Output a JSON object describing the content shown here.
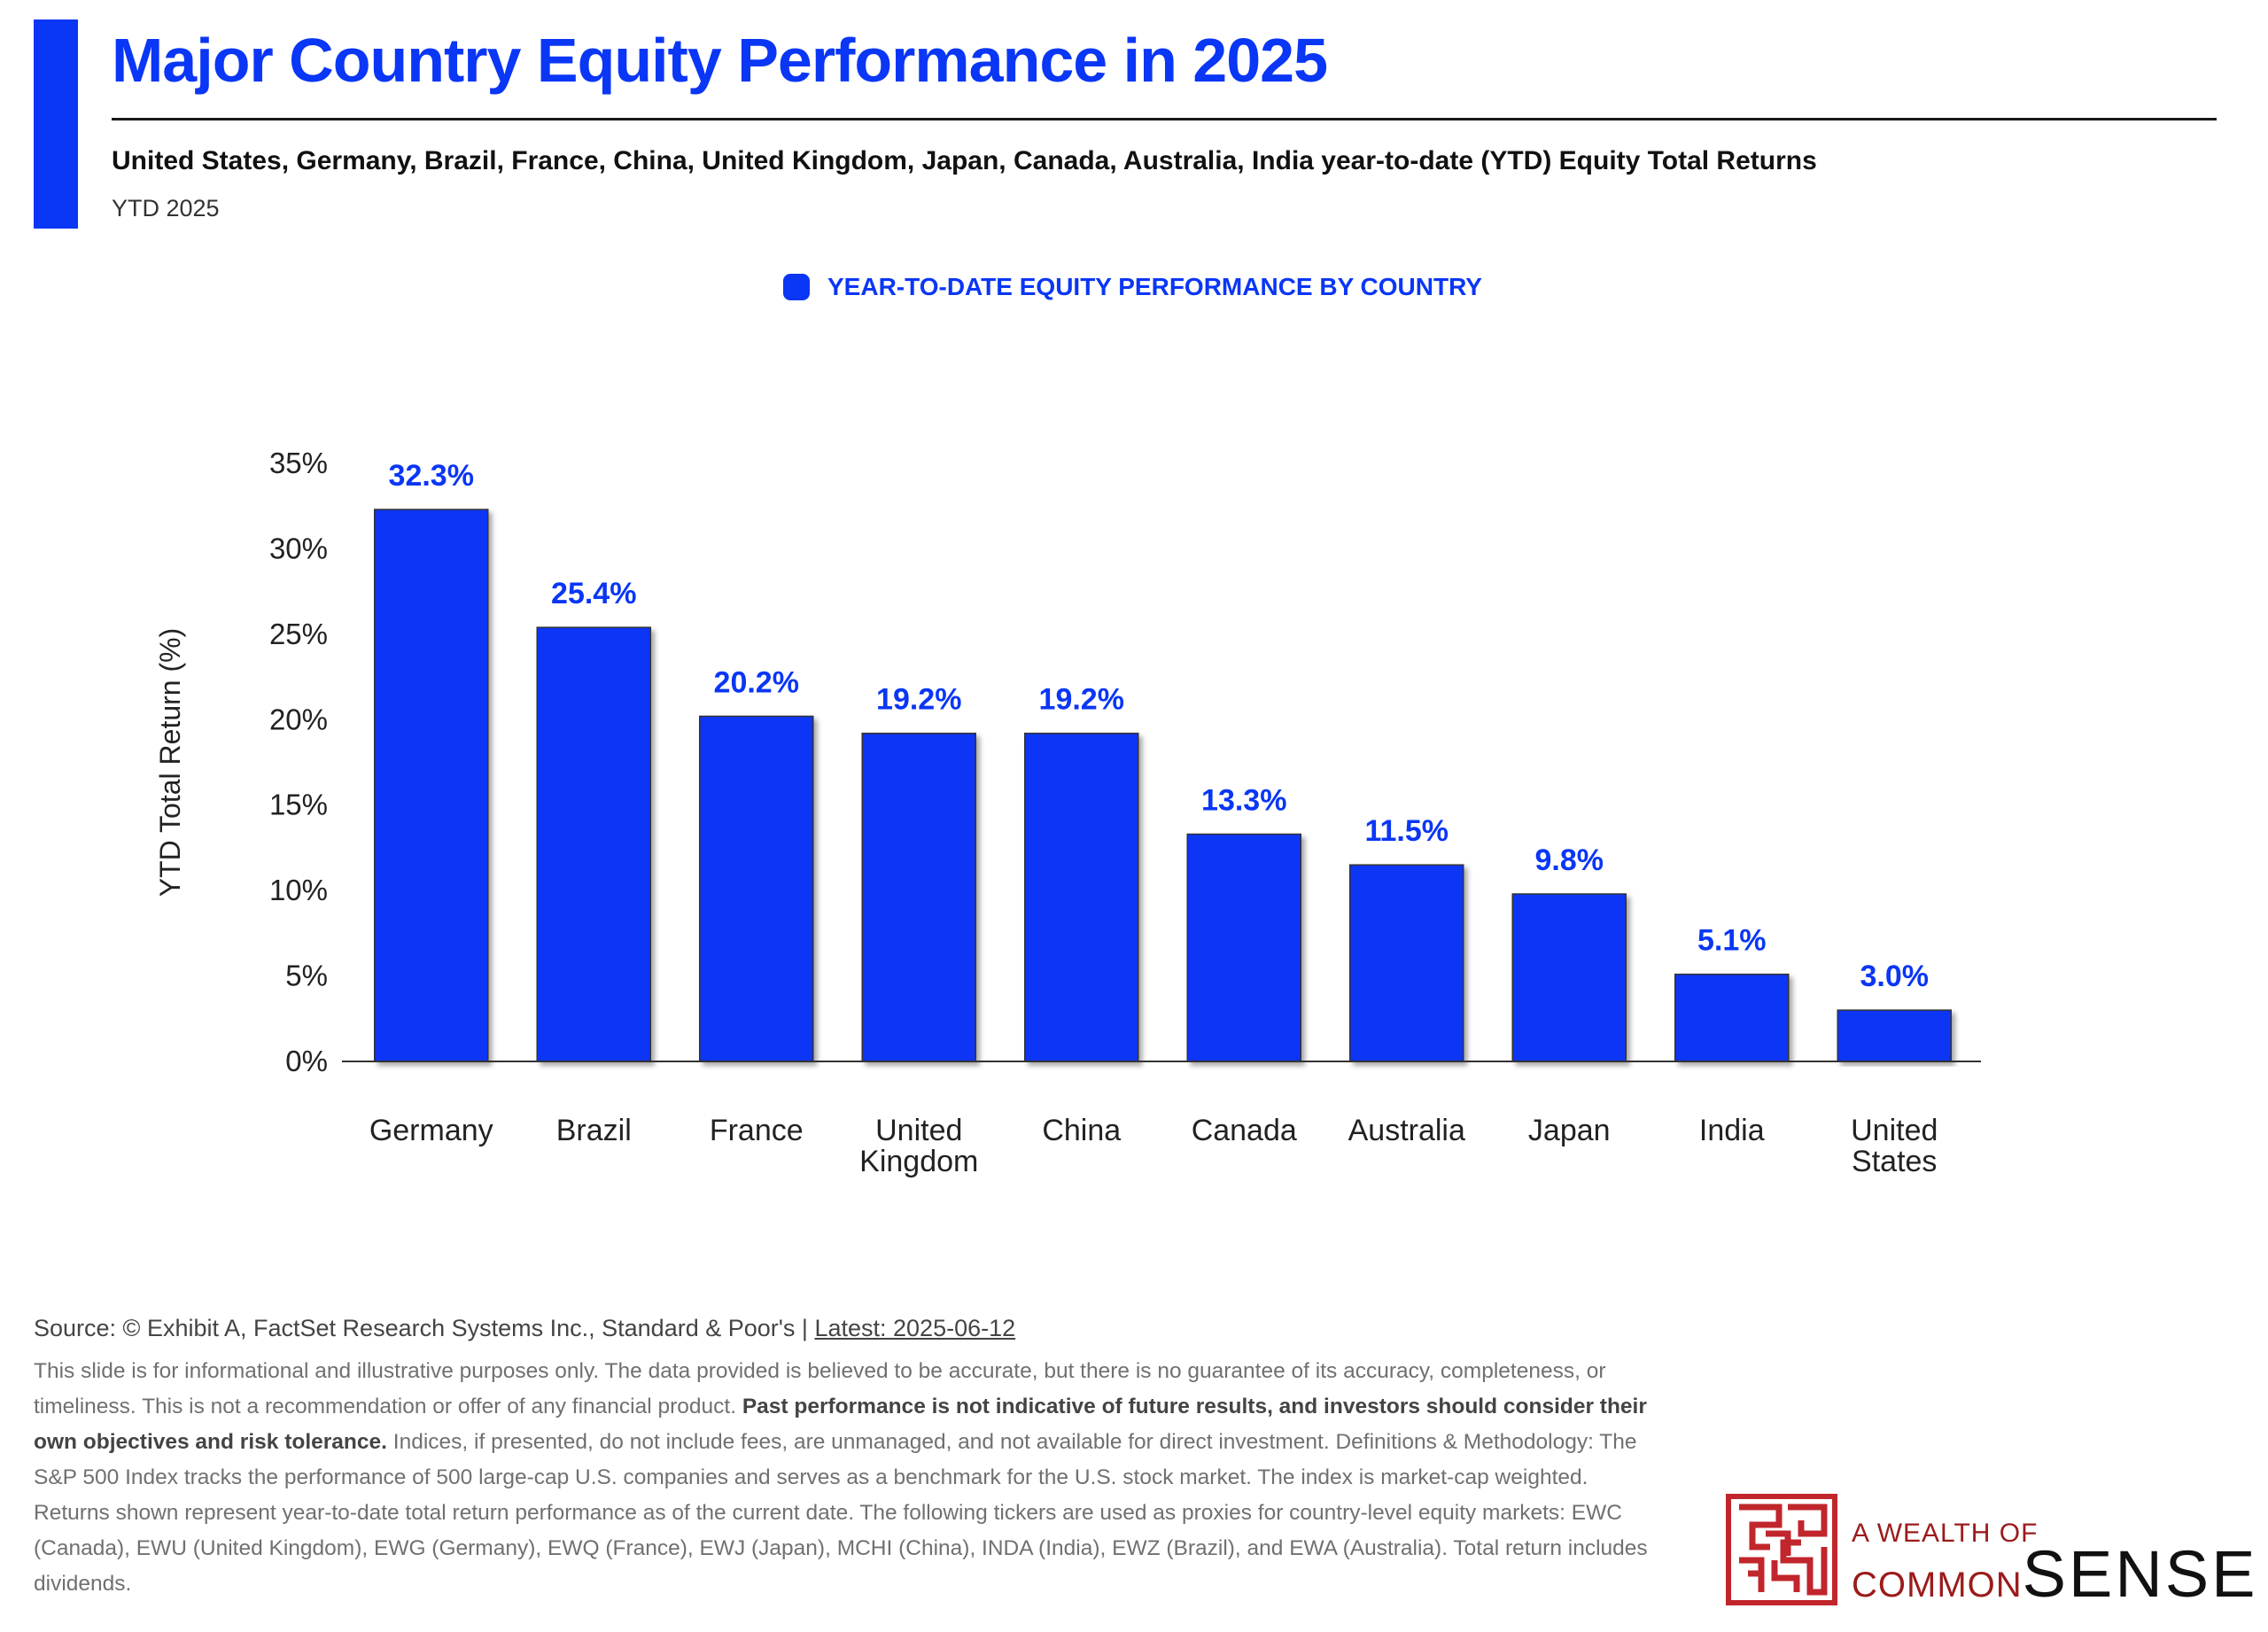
{
  "header": {
    "title": "Major Country Equity Performance in 2025",
    "subtitle": "United States, Germany, Brazil, France, China, United Kingdom, Japan, Canada, Australia, India year-to-date (YTD) Equity Total Returns",
    "period": "YTD 2025"
  },
  "colors": {
    "accent": "#0a36f5",
    "brand_red": "#9b1b1b"
  },
  "chart_data": {
    "type": "bar",
    "title": "",
    "legend": {
      "label": "YEAR-TO-DATE EQUITY PERFORMANCE BY COUNTRY",
      "placement": "top-center"
    },
    "ylabel": "YTD Total Return (%)",
    "xlabel": "",
    "ylim": [
      0,
      35
    ],
    "yticks": [
      0,
      5,
      10,
      15,
      20,
      25,
      30,
      35
    ],
    "ytick_labels": [
      "0%",
      "5%",
      "10%",
      "15%",
      "20%",
      "25%",
      "30%",
      "35%"
    ],
    "grid": false,
    "categories": [
      [
        "Germany"
      ],
      [
        "Brazil"
      ],
      [
        "France"
      ],
      [
        "United",
        "Kingdom"
      ],
      [
        "China"
      ],
      [
        "Canada"
      ],
      [
        "Australia"
      ],
      [
        "Japan"
      ],
      [
        "India"
      ],
      [
        "United",
        "States"
      ]
    ],
    "values": [
      32.3,
      25.4,
      20.2,
      19.2,
      19.2,
      13.3,
      11.5,
      9.8,
      5.1,
      3.0
    ],
    "value_labels": [
      "32.3%",
      "25.4%",
      "20.2%",
      "19.2%",
      "19.2%",
      "13.3%",
      "11.5%",
      "9.8%",
      "5.1%",
      "3.0%"
    ]
  },
  "footer": {
    "source_label": "Source: © Exhibit A, FactSet Research Systems Inc., Standard & Poor's |",
    "latest": "Latest: 2025-06-12",
    "disclaimer_1": "This slide is for informational and illustrative purposes only. The data provided is believed to be accurate, but there is no guarantee of its accuracy, completeness, or timeliness. This is not a recommendation or offer of any financial product.",
    "disclaimer_bold": "Past performance is not indicative of future results, and investors should consider their own objectives and risk tolerance.",
    "disclaimer_2": "Indices, if presented, do not include fees, are unmanaged, and not available for direct investment. Definitions & Methodology: The S&P 500 Index tracks the performance of 500 large-cap U.S. companies and serves as a benchmark for the U.S. stock market. The index is market-cap weighted. Returns shown represent year-to-date total return performance as of the current date. The following tickers are used as proxies for country-level equity markets: EWC (Canada), EWU (United Kingdom), EWG (Germany), EWQ (France), EWJ (Japan), MCHI (China), INDA (India), EWZ (Brazil), and EWA (Australia). Total return includes dividends."
  },
  "brand": {
    "line1": "A WEALTH OF",
    "line2a": "COMMON",
    "line2b": "SENSE",
    "logo_icon": "maze-logo-icon"
  }
}
